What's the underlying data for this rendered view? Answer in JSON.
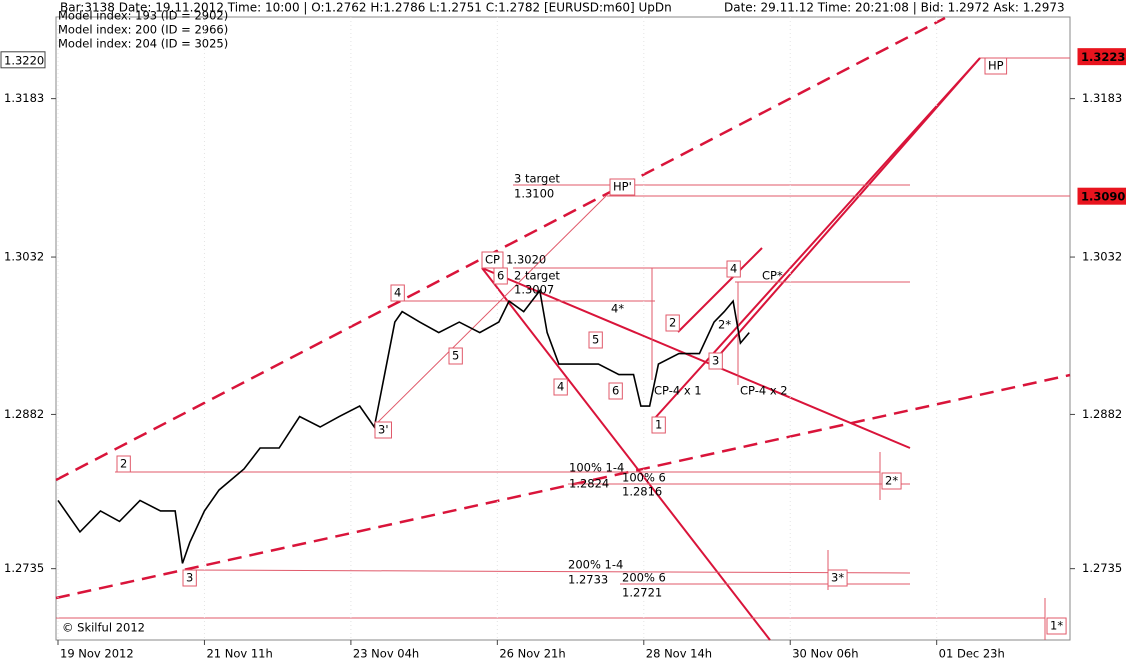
{
  "chart_data": {
    "type": "line",
    "header_left": "Bar:3138  Date:  19.11.2012  Time:  10:00  |  O:1.2762  H:1.2786  L:1.2751  C:1.2782   [EURUSD:m60]  UpDn",
    "header_right": "Date: 29.11.12  Time: 20:21:08  |  Bid:  1.2972  Ask:  1.2973",
    "model_info": [
      "Model index: 193  (ID = 2902)",
      "Model index: 200  (ID = 2966)",
      "Model index: 204  (ID = 3025)"
    ],
    "copyright": "© Skilful 2012",
    "xticks": [
      {
        "value": 0,
        "label": "19 Nov 2012"
      },
      {
        "value": 1,
        "label": "21 Nov 11h"
      },
      {
        "value": 2,
        "label": "23 Nov 04h"
      },
      {
        "value": 3,
        "label": "26 Nov 21h"
      },
      {
        "value": 4,
        "label": "28 Nov 14h"
      },
      {
        "value": 5,
        "label": "30 Nov 06h"
      },
      {
        "value": 6,
        "label": "01 Dec 23h"
      }
    ],
    "xlim": [
      0,
      6.9
    ],
    "ylim": [
      1.2667,
      1.3277
    ],
    "yticks": [
      1.3183,
      1.3032,
      1.2882,
      1.2735
    ],
    "price_tags": [
      {
        "value": 1.322,
        "label": "1.3220",
        "color": "#ffffff"
      },
      {
        "value": 1.3223,
        "label": "1.3223",
        "color": "#e8141e"
      },
      {
        "value": 1.309,
        "label": "1.3090",
        "color": "#e8141e"
      }
    ],
    "series": [
      {
        "name": "EURUSD",
        "color": "#000000",
        "x": [
          0,
          0.15,
          0.29,
          0.42,
          0.56,
          0.7,
          0.8,
          0.85,
          0.9,
          1,
          1.1,
          1.27,
          1.38,
          1.51,
          1.65,
          1.79,
          1.92,
          2.06,
          2.16,
          2.23,
          2.3,
          2.35,
          2.47,
          2.6,
          2.74,
          2.88,
          3.01,
          3.08,
          3.18,
          3.29,
          3.34,
          3.42,
          3.56,
          3.69,
          3.83,
          3.93,
          3.98,
          4.04,
          4.1,
          4.24,
          4.38,
          4.48,
          4.55,
          4.61,
          4.66,
          4.72
        ],
        "values": [
          1.28,
          1.277,
          1.279,
          1.278,
          1.28,
          1.279,
          1.279,
          1.274,
          1.276,
          1.279,
          1.281,
          1.283,
          1.285,
          1.285,
          1.288,
          1.287,
          1.288,
          1.289,
          1.287,
          1.292,
          1.297,
          1.298,
          1.297,
          1.296,
          1.297,
          1.296,
          1.297,
          1.299,
          1.298,
          1.3,
          1.296,
          1.293,
          1.293,
          1.293,
          1.292,
          1.292,
          1.289,
          1.289,
          1.293,
          1.294,
          1.294,
          1.297,
          1.298,
          1.299,
          1.295,
          1.296
        ]
      }
    ],
    "annotations": [
      "HP",
      "HP'",
      "CP",
      "1.3020",
      "3 target",
      "1.3100",
      "2 target",
      "1.3007",
      "6",
      "4*",
      "4",
      "5",
      "3'",
      "2",
      "3",
      "4",
      "5",
      "6",
      "1",
      "2",
      "3",
      "4",
      "2*",
      "CP*",
      "CP-4 x 1",
      "CP-4 x 2",
      "100% 1-4",
      "1.2824",
      "100% 6",
      "1.2816",
      "200% 1-4",
      "1.2733",
      "200% 6",
      "1.2721",
      "2*",
      "3*",
      "1*"
    ]
  }
}
